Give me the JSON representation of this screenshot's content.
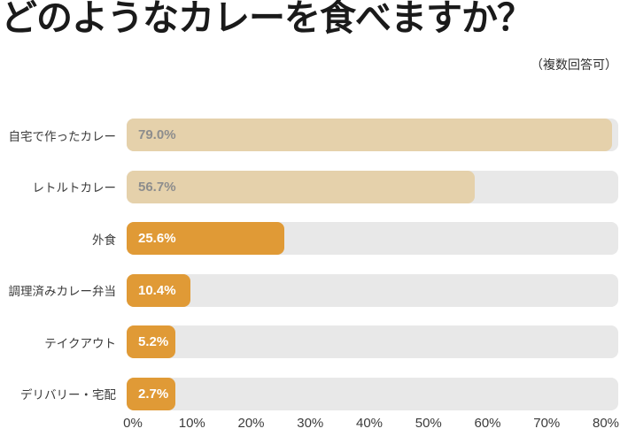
{
  "header": {
    "title": "どのようなカレーを食べますか？",
    "note": "（複数回答可）"
  },
  "colors": {
    "bar_tan": "#e5d1ab",
    "bar_orange": "#e09a36",
    "track": "#e8e8e8",
    "value_on_tan": "#8d8d8d",
    "value_on_orange": "#ffffff",
    "category_text": "#3b3b3b",
    "axis_text": "#3b3b3b",
    "title_text": "#1a1a1a"
  },
  "chart_data": {
    "type": "bar",
    "orientation": "horizontal",
    "title": "どのようなカレーを食べますか？",
    "note": "（複数回答可）",
    "categories": [
      "自宅で作ったカレー",
      "レトルトカレー",
      "外食",
      "調理済みカレー弁当",
      "テイクアウト",
      "デリバリー・宅配"
    ],
    "values": [
      79.0,
      56.7,
      25.6,
      10.4,
      5.2,
      2.7
    ],
    "value_labels": [
      "79.0%",
      "56.7%",
      "25.6%",
      "10.4%",
      "5.2%",
      "2.7%"
    ],
    "bar_color_keys": [
      "tan",
      "tan",
      "orange",
      "orange",
      "orange",
      "orange"
    ],
    "xlabel": "",
    "ylabel": "",
    "xlim": [
      0,
      80
    ],
    "x_ticks": [
      "0%",
      "10%",
      "20%",
      "30%",
      "40%",
      "50%",
      "60%",
      "70%",
      "80%"
    ],
    "grid": false,
    "legend": false,
    "value_label_position": "inside-start"
  }
}
